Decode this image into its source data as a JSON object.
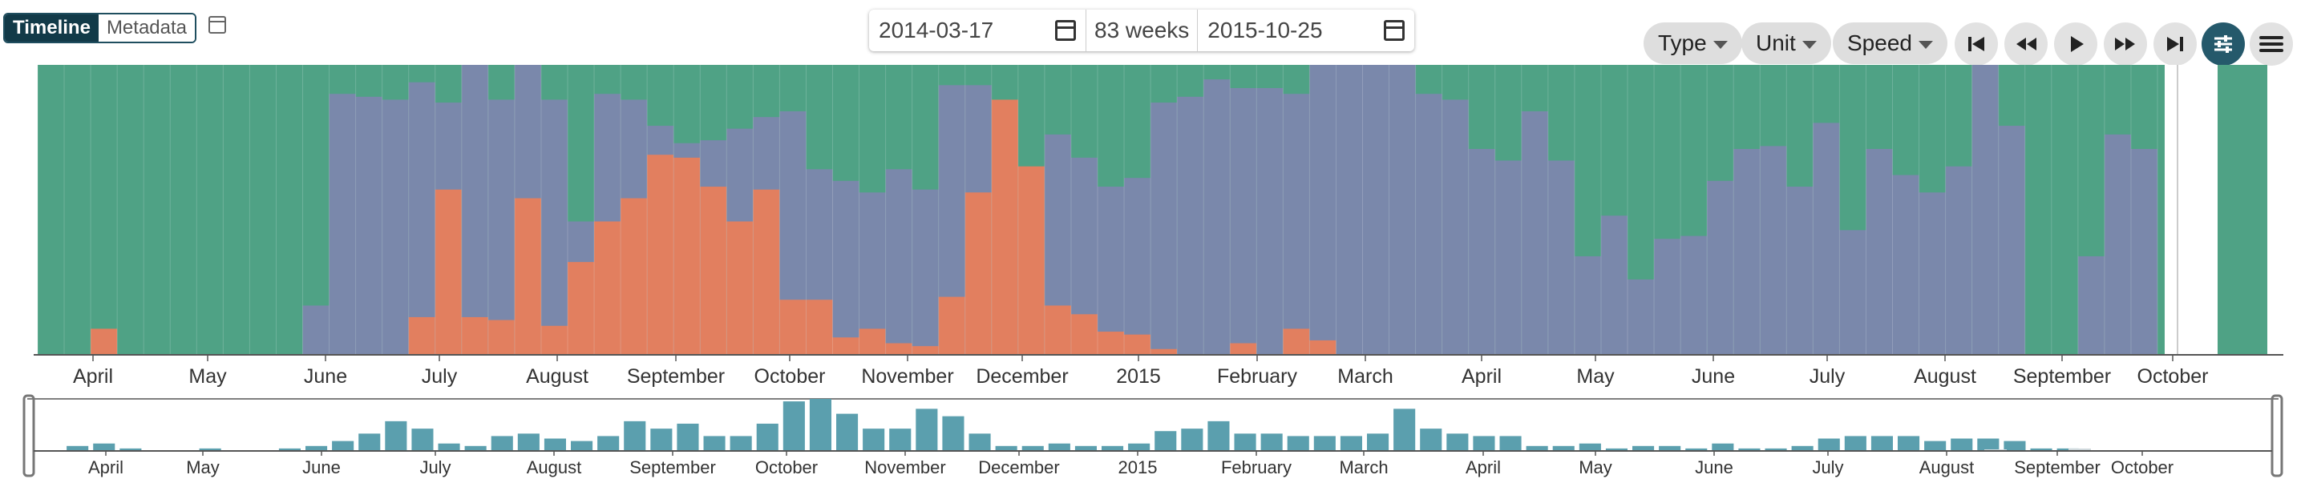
{
  "view_tabs": {
    "timeline": "Timeline",
    "metadata": "Metadata"
  },
  "date_range": {
    "start": "2014-03-17",
    "duration": "83 weeks",
    "end": "2015-10-25"
  },
  "filters": {
    "type": "Type",
    "unit": "Unit",
    "speed": "Speed"
  },
  "playback": {
    "icons": [
      "skip-to-start-icon",
      "rewind-icon",
      "play-icon",
      "fast-forward-icon",
      "skip-to-end-icon"
    ]
  },
  "toolbar_icons": {
    "settings": "sliders-icon",
    "menu": "hamburger-menu-icon"
  },
  "colors": {
    "green": "#4fa285",
    "purple": "#7a88ab",
    "orange": "#e27f5f",
    "overview": "#5b9fae",
    "accent": "#25596b"
  },
  "main_axis_labels": [
    "April",
    "May",
    "June",
    "July",
    "August",
    "September",
    "October",
    "November",
    "December",
    "2015",
    "February",
    "March",
    "April",
    "May",
    "June",
    "July",
    "August",
    "September",
    "October"
  ],
  "overview_axis_labels": [
    "April",
    "May",
    "June",
    "July",
    "August",
    "September",
    "October",
    "November",
    "December",
    "2015",
    "February",
    "March",
    "April",
    "May",
    "June",
    "July",
    "August",
    "September",
    "October"
  ],
  "chart_data": [
    {
      "type": "bar",
      "stacked": true,
      "normalized_percent": true,
      "x_unit": "week",
      "x_start": "2014-03-17",
      "x_end": "2015-10-25",
      "n_weeks": 83,
      "series_colors": [
        "#e27f5f",
        "#7a88ab",
        "#4fa285"
      ],
      "orange_percent": [
        0,
        0,
        9,
        0,
        0,
        0,
        0,
        0,
        0,
        0,
        0,
        0,
        0,
        0,
        13,
        57,
        13,
        12,
        54,
        10,
        32,
        46,
        54,
        69,
        68,
        58,
        46,
        57,
        19,
        19,
        6,
        9,
        4,
        3,
        20,
        56,
        88,
        65,
        17,
        14,
        8,
        7,
        2,
        0,
        0,
        4,
        0,
        9,
        5,
        0,
        0,
        0,
        0,
        0,
        0,
        0,
        0,
        0,
        0,
        0,
        0,
        0,
        0,
        0,
        0,
        0,
        0,
        0,
        0,
        0,
        0,
        0,
        0,
        0,
        0,
        0,
        0,
        0,
        0,
        0,
        0,
        0,
        0
      ],
      "purple_cumulative_percent": [
        0,
        0,
        0,
        0,
        0,
        0,
        0,
        0,
        0,
        0,
        17,
        90,
        89,
        88,
        94,
        87,
        100,
        88,
        100,
        88,
        46,
        90,
        88,
        79,
        73,
        74,
        78,
        82,
        84,
        64,
        60,
        56,
        64,
        57,
        93,
        93,
        84,
        54,
        76,
        68,
        58,
        61,
        87,
        89,
        95,
        92,
        92,
        90,
        100,
        100,
        100,
        100,
        90,
        88,
        71,
        67,
        84,
        67,
        34,
        48,
        26,
        40,
        41,
        60,
        71,
        72,
        58,
        80,
        43,
        71,
        62,
        56,
        65,
        100,
        79,
        0,
        0,
        34,
        76,
        71,
        0,
        0,
        0
      ]
    },
    {
      "type": "bar",
      "x_unit": "week",
      "n_weeks": 83,
      "values": [
        0,
        2,
        3,
        1,
        0,
        0,
        1,
        0,
        0,
        1,
        2,
        4,
        7,
        12,
        9,
        3,
        2,
        6,
        7,
        5,
        4,
        6,
        12,
        9,
        11,
        6,
        6,
        11,
        20,
        21,
        15,
        9,
        9,
        17,
        14,
        7,
        2,
        2,
        3,
        2,
        2,
        3,
        8,
        9,
        12,
        7,
        7,
        6,
        6,
        6,
        7,
        17,
        9,
        7,
        6,
        6,
        2,
        2,
        3,
        1,
        2,
        2,
        1,
        3,
        1,
        1,
        2,
        5,
        6,
        6,
        6,
        4,
        5,
        5,
        4,
        1,
        1,
        0,
        0,
        0,
        0,
        0,
        0
      ]
    }
  ]
}
